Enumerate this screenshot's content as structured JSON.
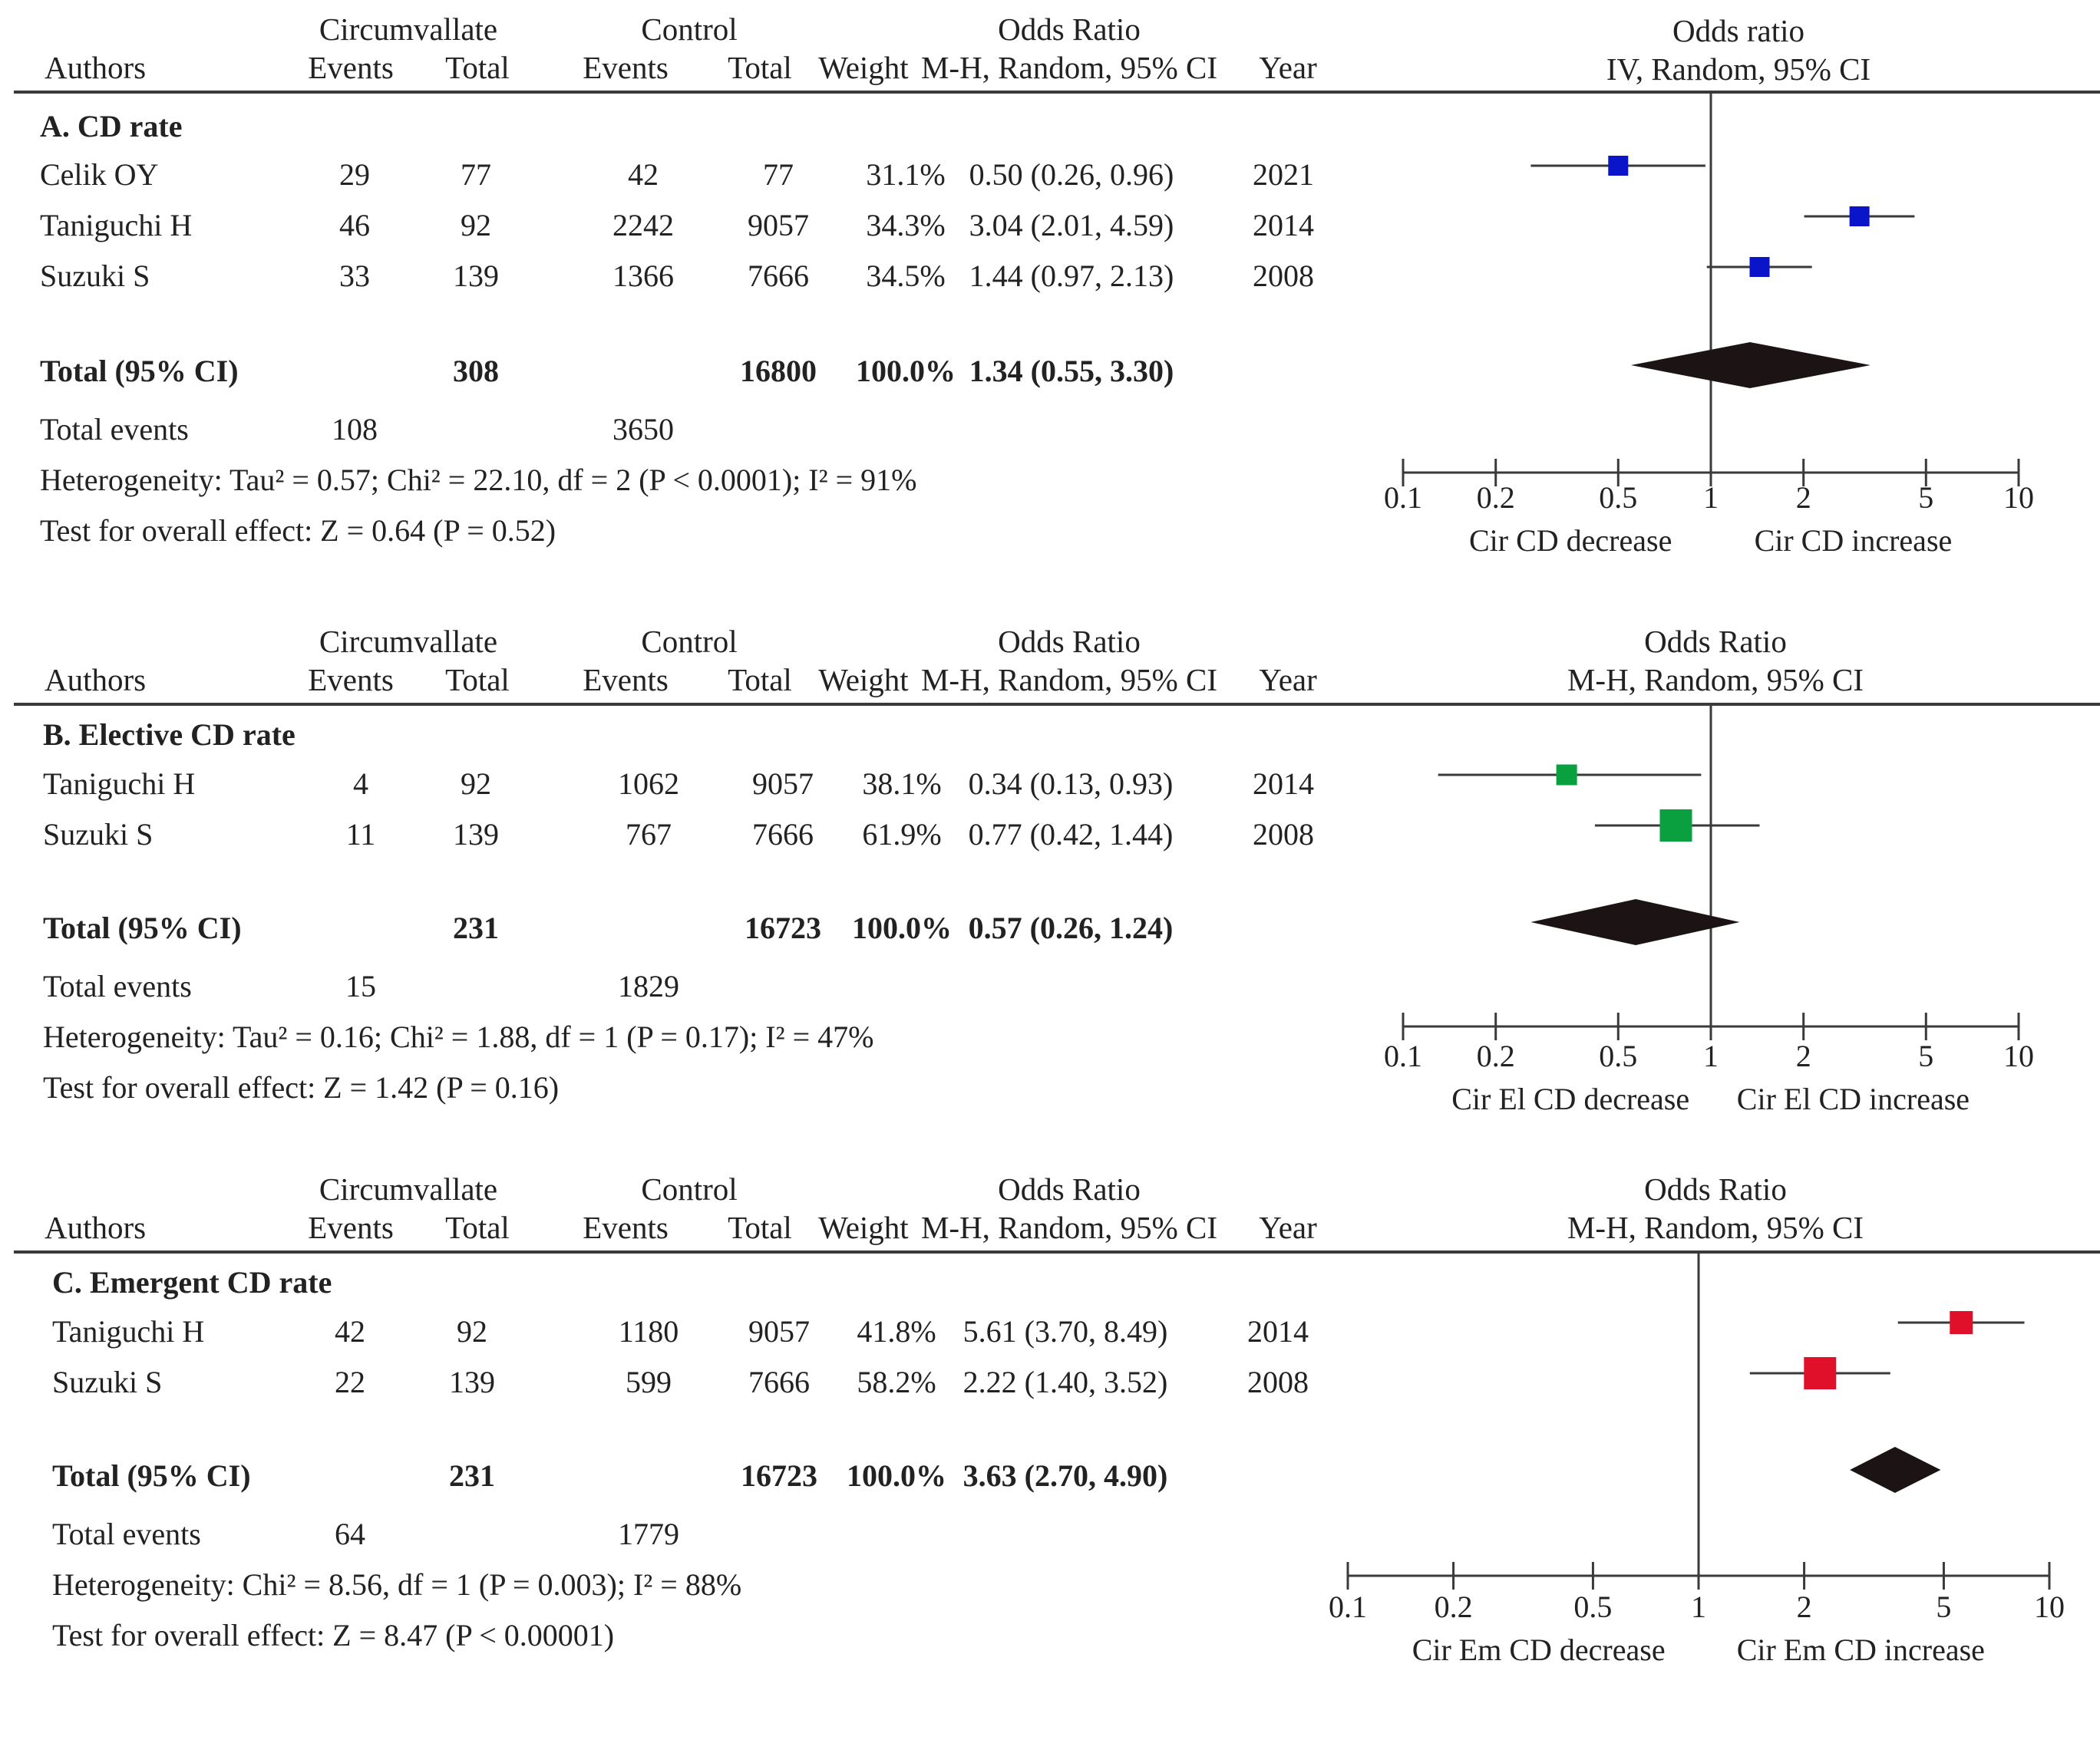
{
  "headers": {
    "authors": "Authors",
    "circumvallate": "Circumvallate",
    "control": "Control",
    "events": "Events",
    "total": "Total",
    "weight": "Weight",
    "or_title": "Odds Ratio",
    "or_method": "M-H, Random, 95% CI",
    "year": "Year"
  },
  "chart_data": [
    {
      "type": "forest",
      "section": "A. CD rate",
      "plot_title": "Odds ratio",
      "plot_method": "IV, Random, 95% CI",
      "marker_color": "#0a14c8",
      "studies": [
        {
          "name": "Celik OY",
          "cir_events": "29",
          "cir_total": "77",
          "ctl_events": "42",
          "ctl_total": "77",
          "weight": "31.1%",
          "ci_text": "0.50 (0.26, 0.96)",
          "year": "2021",
          "or": 0.5,
          "lo": 0.26,
          "hi": 0.96
        },
        {
          "name": "Taniguchi H",
          "cir_events": "46",
          "cir_total": "92",
          "ctl_events": "2242",
          "ctl_total": "9057",
          "weight": "34.3%",
          "ci_text": "3.04 (2.01, 4.59)",
          "year": "2014",
          "or": 3.04,
          "lo": 2.01,
          "hi": 4.59
        },
        {
          "name": "Suzuki S",
          "cir_events": "33",
          "cir_total": "139",
          "ctl_events": "1366",
          "ctl_total": "7666",
          "weight": "34.5%",
          "ci_text": "1.44 (0.97, 2.13)",
          "year": "2008",
          "or": 1.44,
          "lo": 0.97,
          "hi": 2.13
        }
      ],
      "total": {
        "label": "Total (95% CI)",
        "cir_total": "308",
        "ctl_total": "16800",
        "weight": "100.0%",
        "ci_text": "1.34 (0.55, 3.30)",
        "or": 1.34,
        "lo": 0.55,
        "hi": 3.3
      },
      "total_events": {
        "label": "Total events",
        "cir": "108",
        "ctl": "3650"
      },
      "heterogeneity": "Heterogeneity: Tau² = 0.57; Chi² = 22.10, df = 2 (P < 0.0001); I² = 91%",
      "overall_effect": "Test for overall effect: Z = 0.64 (P = 0.52)",
      "ticks": [
        0.1,
        0.2,
        0.5,
        1,
        2,
        5,
        10
      ],
      "tick_labels": [
        "0.1",
        "0.2",
        "0.5",
        "1",
        "2",
        "5",
        "10"
      ],
      "favours_left": "Cir CD decrease",
      "favours_right": "Cir CD increase"
    },
    {
      "type": "forest",
      "section": "B. Elective CD rate",
      "plot_title": "Odds Ratio",
      "plot_method": "M-H, Random, 95% CI",
      "marker_color": "#0aa040",
      "studies": [
        {
          "name": "Taniguchi H",
          "cir_events": "4",
          "cir_total": "92",
          "ctl_events": "1062",
          "ctl_total": "9057",
          "weight": "38.1%",
          "ci_text": "0.34 (0.13, 0.93)",
          "year": "2014",
          "or": 0.34,
          "lo": 0.13,
          "hi": 0.93
        },
        {
          "name": "Suzuki S",
          "cir_events": "11",
          "cir_total": "139",
          "ctl_events": "767",
          "ctl_total": "7666",
          "weight": "61.9%",
          "ci_text": "0.77 (0.42, 1.44)",
          "year": "2008",
          "or": 0.77,
          "lo": 0.42,
          "hi": 1.44
        }
      ],
      "total": {
        "label": "Total (95% CI)",
        "cir_total": "231",
        "ctl_total": "16723",
        "weight": "100.0%",
        "ci_text": "0.57 (0.26, 1.24)",
        "or": 0.57,
        "lo": 0.26,
        "hi": 1.24
      },
      "total_events": {
        "label": "Total events",
        "cir": "15",
        "ctl": "1829"
      },
      "heterogeneity": "Heterogeneity: Tau² = 0.16; Chi² = 1.88, df = 1 (P = 0.17); I² = 47%",
      "overall_effect": "Test for overall effect: Z = 1.42 (P = 0.16)",
      "ticks": [
        0.1,
        0.2,
        0.5,
        1,
        2,
        5,
        10
      ],
      "tick_labels": [
        "0.1",
        "0.2",
        "0.5",
        "1",
        "2",
        "5",
        "10"
      ],
      "favours_left": "Cir El CD decrease",
      "favours_right": "Cir El CD increase"
    },
    {
      "type": "forest",
      "section": "C. Emergent CD rate",
      "plot_title": "Odds Ratio",
      "plot_method": "M-H, Random, 95% CI",
      "marker_color": "#e0102a",
      "studies": [
        {
          "name": "Taniguchi H",
          "cir_events": "42",
          "cir_total": "92",
          "ctl_events": "1180",
          "ctl_total": "9057",
          "weight": "41.8%",
          "ci_text": "5.61 (3.70, 8.49)",
          "year": "2014",
          "or": 5.61,
          "lo": 3.7,
          "hi": 8.49
        },
        {
          "name": "Suzuki S",
          "cir_events": "22",
          "cir_total": "139",
          "ctl_events": "599",
          "ctl_total": "7666",
          "weight": "58.2%",
          "ci_text": "2.22 (1.40, 3.52)",
          "year": "2008",
          "or": 2.22,
          "lo": 1.4,
          "hi": 3.52
        }
      ],
      "total": {
        "label": "Total (95% CI)",
        "cir_total": "231",
        "ctl_total": "16723",
        "weight": "100.0%",
        "ci_text": "3.63 (2.70, 4.90)",
        "or": 3.63,
        "lo": 2.7,
        "hi": 4.9
      },
      "total_events": {
        "label": "Total events",
        "cir": "64",
        "ctl": "1779"
      },
      "heterogeneity": "Heterogeneity: Chi² = 8.56, df = 1 (P = 0.003); I² = 88%",
      "overall_effect": "Test for overall effect: Z = 8.47 (P < 0.00001)",
      "ticks": [
        0.1,
        0.2,
        0.5,
        1,
        2,
        5,
        10
      ],
      "tick_labels": [
        "0.1",
        "0.2",
        "0.5",
        "1",
        "2",
        "5",
        "10"
      ],
      "favours_left": "Cir Em CD decrease",
      "favours_right": "Cir Em CD increase"
    }
  ]
}
